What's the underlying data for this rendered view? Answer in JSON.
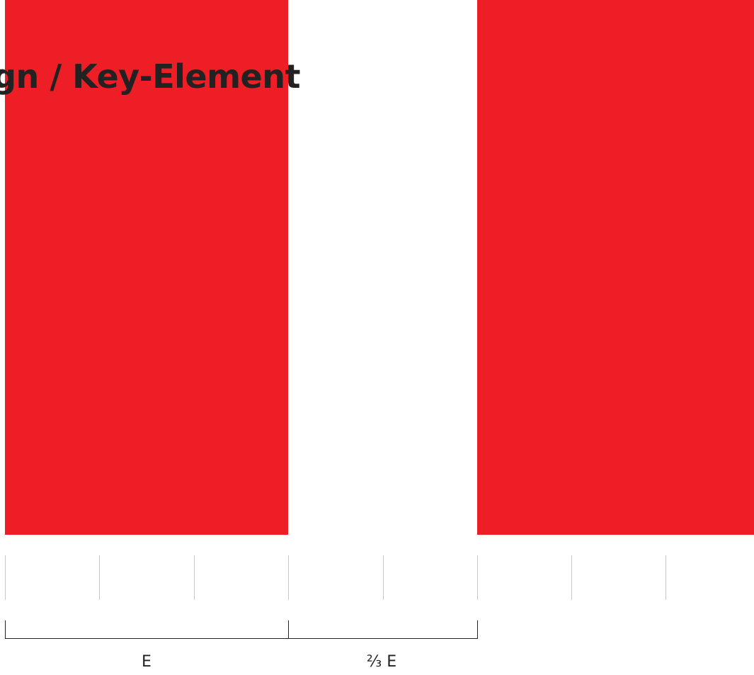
{
  "headline": "Design / Key-Element",
  "colors": {
    "brand_red": "#ee1e27",
    "text_dark": "#222222",
    "grid_line": "#c8c8c8"
  },
  "measurements": {
    "module_label": "E",
    "gap_label": "⅔ E"
  },
  "ratios": {
    "gap_to_module": 0.6667
  },
  "grid": {
    "tick_count": 8
  }
}
